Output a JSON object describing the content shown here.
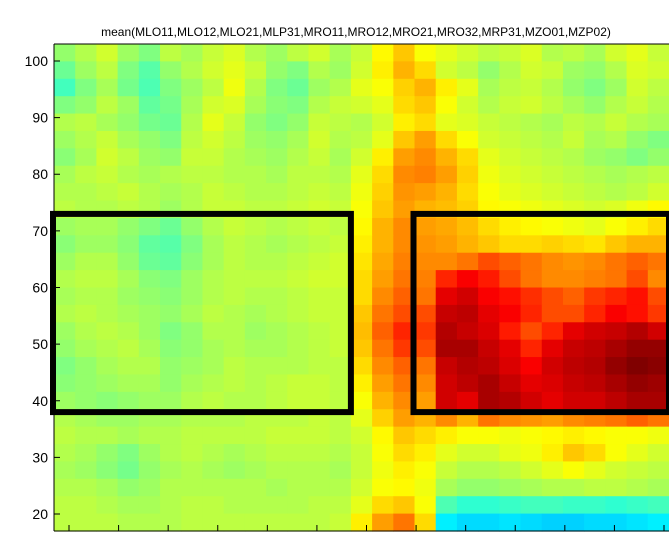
{
  "chart_data": {
    "type": "heatmap",
    "title": "mean(MLO11,MLO12,MLO21,MLP31,MRO11,MRO12,MRO21,MRO32,MRP31,MZO01,MZP02)",
    "xlabel": "",
    "ylabel": "",
    "ylim": [
      17,
      103
    ],
    "y_ticks": [
      20,
      30,
      40,
      50,
      60,
      70,
      80,
      90,
      100
    ],
    "x_ticks_count": 13,
    "colormap": "jet",
    "grid": false,
    "rows_y": [
      101,
      98,
      95,
      92,
      89,
      86,
      83,
      80,
      77,
      74,
      71,
      68,
      65,
      62,
      59,
      56,
      53,
      50,
      47,
      44,
      41,
      38,
      35,
      32,
      29,
      26,
      23,
      20
    ],
    "values": [
      [
        0.52,
        0.55,
        0.58,
        0.53,
        0.5,
        0.56,
        0.54,
        0.57,
        0.59,
        0.55,
        0.53,
        0.56,
        0.58,
        0.54,
        0.57,
        0.63,
        0.68,
        0.62,
        0.6,
        0.58,
        0.56,
        0.57,
        0.59,
        0.55,
        0.56,
        0.54,
        0.58,
        0.6,
        0.57
      ],
      [
        0.48,
        0.53,
        0.56,
        0.5,
        0.46,
        0.52,
        0.55,
        0.58,
        0.6,
        0.57,
        0.52,
        0.5,
        0.55,
        0.53,
        0.58,
        0.64,
        0.7,
        0.66,
        0.58,
        0.56,
        0.52,
        0.55,
        0.58,
        0.57,
        0.53,
        0.52,
        0.55,
        0.59,
        0.58
      ],
      [
        0.44,
        0.5,
        0.54,
        0.49,
        0.45,
        0.5,
        0.53,
        0.56,
        0.61,
        0.55,
        0.5,
        0.48,
        0.53,
        0.55,
        0.6,
        0.62,
        0.67,
        0.7,
        0.64,
        0.6,
        0.54,
        0.56,
        0.57,
        0.55,
        0.52,
        0.5,
        0.53,
        0.58,
        0.56
      ],
      [
        0.5,
        0.52,
        0.56,
        0.53,
        0.47,
        0.49,
        0.54,
        0.58,
        0.59,
        0.54,
        0.51,
        0.5,
        0.55,
        0.57,
        0.58,
        0.6,
        0.66,
        0.68,
        0.62,
        0.58,
        0.55,
        0.57,
        0.58,
        0.56,
        0.54,
        0.52,
        0.55,
        0.57,
        0.55
      ],
      [
        0.55,
        0.56,
        0.54,
        0.52,
        0.49,
        0.48,
        0.55,
        0.6,
        0.57,
        0.52,
        0.5,
        0.52,
        0.57,
        0.56,
        0.55,
        0.58,
        0.64,
        0.66,
        0.6,
        0.59,
        0.57,
        0.56,
        0.55,
        0.54,
        0.56,
        0.55,
        0.57,
        0.55,
        0.54
      ],
      [
        0.53,
        0.55,
        0.57,
        0.54,
        0.52,
        0.5,
        0.56,
        0.58,
        0.56,
        0.53,
        0.52,
        0.54,
        0.58,
        0.55,
        0.56,
        0.6,
        0.68,
        0.72,
        0.66,
        0.62,
        0.58,
        0.57,
        0.56,
        0.55,
        0.57,
        0.54,
        0.55,
        0.52,
        0.5
      ],
      [
        0.51,
        0.54,
        0.58,
        0.56,
        0.53,
        0.52,
        0.57,
        0.57,
        0.55,
        0.54,
        0.53,
        0.55,
        0.57,
        0.54,
        0.58,
        0.64,
        0.72,
        0.74,
        0.7,
        0.66,
        0.6,
        0.58,
        0.57,
        0.56,
        0.55,
        0.53,
        0.52,
        0.5,
        0.52
      ],
      [
        0.54,
        0.56,
        0.57,
        0.55,
        0.54,
        0.55,
        0.56,
        0.56,
        0.55,
        0.55,
        0.54,
        0.56,
        0.56,
        0.55,
        0.6,
        0.66,
        0.74,
        0.75,
        0.72,
        0.67,
        0.61,
        0.59,
        0.58,
        0.57,
        0.56,
        0.55,
        0.54,
        0.55,
        0.56
      ],
      [
        0.55,
        0.55,
        0.56,
        0.57,
        0.55,
        0.54,
        0.55,
        0.57,
        0.56,
        0.55,
        0.55,
        0.56,
        0.57,
        0.56,
        0.61,
        0.67,
        0.73,
        0.72,
        0.7,
        0.66,
        0.62,
        0.6,
        0.59,
        0.58,
        0.57,
        0.56,
        0.55,
        0.56,
        0.58
      ],
      [
        0.56,
        0.55,
        0.55,
        0.56,
        0.55,
        0.53,
        0.55,
        0.57,
        0.57,
        0.56,
        0.56,
        0.57,
        0.58,
        0.57,
        0.62,
        0.68,
        0.72,
        0.7,
        0.69,
        0.67,
        0.63,
        0.62,
        0.61,
        0.6,
        0.59,
        0.58,
        0.59,
        0.61,
        0.63
      ],
      [
        0.53,
        0.54,
        0.54,
        0.52,
        0.5,
        0.48,
        0.52,
        0.55,
        0.57,
        0.56,
        0.55,
        0.56,
        0.57,
        0.56,
        0.63,
        0.7,
        0.74,
        0.72,
        0.71,
        0.69,
        0.66,
        0.64,
        0.63,
        0.62,
        0.61,
        0.6,
        0.62,
        0.64,
        0.66
      ],
      [
        0.51,
        0.53,
        0.53,
        0.51,
        0.47,
        0.46,
        0.5,
        0.54,
        0.56,
        0.55,
        0.54,
        0.55,
        0.56,
        0.57,
        0.64,
        0.7,
        0.74,
        0.73,
        0.72,
        0.7,
        0.68,
        0.66,
        0.66,
        0.67,
        0.66,
        0.65,
        0.68,
        0.7,
        0.7
      ],
      [
        0.53,
        0.55,
        0.55,
        0.52,
        0.48,
        0.47,
        0.51,
        0.54,
        0.56,
        0.55,
        0.55,
        0.56,
        0.57,
        0.58,
        0.65,
        0.71,
        0.75,
        0.74,
        0.74,
        0.76,
        0.8,
        0.78,
        0.76,
        0.74,
        0.73,
        0.74,
        0.76,
        0.78,
        0.76
      ],
      [
        0.55,
        0.56,
        0.56,
        0.54,
        0.51,
        0.5,
        0.53,
        0.55,
        0.56,
        0.56,
        0.56,
        0.57,
        0.58,
        0.58,
        0.66,
        0.72,
        0.76,
        0.75,
        0.84,
        0.88,
        0.85,
        0.8,
        0.76,
        0.74,
        0.74,
        0.75,
        0.76,
        0.8,
        0.74
      ],
      [
        0.54,
        0.55,
        0.55,
        0.53,
        0.52,
        0.51,
        0.53,
        0.55,
        0.56,
        0.55,
        0.55,
        0.56,
        0.57,
        0.57,
        0.66,
        0.74,
        0.78,
        0.76,
        0.9,
        0.92,
        0.88,
        0.86,
        0.83,
        0.8,
        0.78,
        0.82,
        0.84,
        0.86,
        0.8
      ],
      [
        0.55,
        0.56,
        0.55,
        0.54,
        0.53,
        0.52,
        0.54,
        0.56,
        0.55,
        0.54,
        0.55,
        0.56,
        0.57,
        0.57,
        0.68,
        0.76,
        0.8,
        0.8,
        0.93,
        0.94,
        0.9,
        0.88,
        0.84,
        0.8,
        0.8,
        0.84,
        0.88,
        0.86,
        0.82
      ],
      [
        0.53,
        0.55,
        0.56,
        0.55,
        0.53,
        0.5,
        0.52,
        0.55,
        0.55,
        0.53,
        0.54,
        0.55,
        0.56,
        0.57,
        0.69,
        0.78,
        0.84,
        0.82,
        0.95,
        0.93,
        0.91,
        0.85,
        0.8,
        0.84,
        0.9,
        0.92,
        0.93,
        0.95,
        0.92
      ],
      [
        0.52,
        0.54,
        0.55,
        0.56,
        0.54,
        0.51,
        0.52,
        0.54,
        0.55,
        0.54,
        0.54,
        0.55,
        0.56,
        0.57,
        0.68,
        0.76,
        0.82,
        0.8,
        0.96,
        0.96,
        0.93,
        0.9,
        0.84,
        0.9,
        0.93,
        0.94,
        0.96,
        0.98,
        0.98
      ],
      [
        0.5,
        0.52,
        0.54,
        0.55,
        0.55,
        0.52,
        0.53,
        0.54,
        0.56,
        0.55,
        0.55,
        0.55,
        0.56,
        0.56,
        0.66,
        0.74,
        0.78,
        0.76,
        0.93,
        0.95,
        0.94,
        0.91,
        0.88,
        0.92,
        0.94,
        0.95,
        0.98,
        1.0,
        0.99
      ],
      [
        0.51,
        0.52,
        0.53,
        0.54,
        0.54,
        0.52,
        0.54,
        0.55,
        0.56,
        0.55,
        0.56,
        0.57,
        0.57,
        0.56,
        0.64,
        0.72,
        0.76,
        0.74,
        0.92,
        0.94,
        0.96,
        0.93,
        0.9,
        0.91,
        0.93,
        0.94,
        0.96,
        0.98,
        0.97
      ],
      [
        0.53,
        0.52,
        0.51,
        0.52,
        0.53,
        0.53,
        0.55,
        0.56,
        0.55,
        0.55,
        0.56,
        0.57,
        0.57,
        0.56,
        0.62,
        0.7,
        0.74,
        0.72,
        0.92,
        0.9,
        0.96,
        0.95,
        0.92,
        0.9,
        0.92,
        0.92,
        0.94,
        0.96,
        0.96
      ],
      [
        0.55,
        0.54,
        0.53,
        0.53,
        0.54,
        0.54,
        0.55,
        0.55,
        0.55,
        0.56,
        0.56,
        0.56,
        0.57,
        0.56,
        0.6,
        0.67,
        0.72,
        0.7,
        0.74,
        0.7,
        0.76,
        0.74,
        0.73,
        0.72,
        0.74,
        0.75,
        0.76,
        0.78,
        0.76
      ],
      [
        0.56,
        0.55,
        0.55,
        0.54,
        0.55,
        0.55,
        0.56,
        0.56,
        0.56,
        0.56,
        0.57,
        0.57,
        0.57,
        0.56,
        0.58,
        0.63,
        0.68,
        0.66,
        0.64,
        0.62,
        0.62,
        0.61,
        0.62,
        0.63,
        0.64,
        0.63,
        0.62,
        0.62,
        0.61
      ],
      [
        0.55,
        0.54,
        0.52,
        0.5,
        0.53,
        0.55,
        0.56,
        0.55,
        0.54,
        0.55,
        0.56,
        0.56,
        0.56,
        0.55,
        0.57,
        0.62,
        0.66,
        0.64,
        0.6,
        0.58,
        0.58,
        0.6,
        0.61,
        0.64,
        0.68,
        0.66,
        0.62,
        0.6,
        0.58
      ],
      [
        0.54,
        0.53,
        0.51,
        0.49,
        0.52,
        0.54,
        0.55,
        0.54,
        0.53,
        0.54,
        0.55,
        0.55,
        0.55,
        0.54,
        0.57,
        0.61,
        0.64,
        0.62,
        0.57,
        0.55,
        0.55,
        0.56,
        0.58,
        0.6,
        0.62,
        0.6,
        0.58,
        0.57,
        0.56
      ],
      [
        0.55,
        0.55,
        0.54,
        0.52,
        0.53,
        0.55,
        0.55,
        0.55,
        0.55,
        0.55,
        0.54,
        0.55,
        0.55,
        0.55,
        0.58,
        0.62,
        0.63,
        0.61,
        0.54,
        0.52,
        0.52,
        0.53,
        0.54,
        0.55,
        0.55,
        0.56,
        0.56,
        0.55,
        0.54
      ],
      [
        0.56,
        0.56,
        0.55,
        0.54,
        0.54,
        0.55,
        0.56,
        0.56,
        0.55,
        0.55,
        0.55,
        0.55,
        0.56,
        0.56,
        0.6,
        0.66,
        0.68,
        0.62,
        0.45,
        0.42,
        0.42,
        0.43,
        0.44,
        0.44,
        0.43,
        0.43,
        0.42,
        0.43,
        0.44
      ],
      [
        0.56,
        0.56,
        0.56,
        0.55,
        0.55,
        0.55,
        0.56,
        0.56,
        0.56,
        0.56,
        0.56,
        0.56,
        0.56,
        0.57,
        0.64,
        0.72,
        0.76,
        0.66,
        0.36,
        0.34,
        0.34,
        0.35,
        0.34,
        0.33,
        0.33,
        0.34,
        0.34,
        0.35,
        0.36
      ]
    ]
  },
  "annotations": {
    "left_box": {
      "x_cols": [
        0,
        14
      ],
      "y_range": [
        38,
        73
      ]
    },
    "right_box": {
      "x_cols": [
        17,
        29
      ],
      "y_range": [
        38,
        73
      ]
    },
    "color": "#000000"
  }
}
